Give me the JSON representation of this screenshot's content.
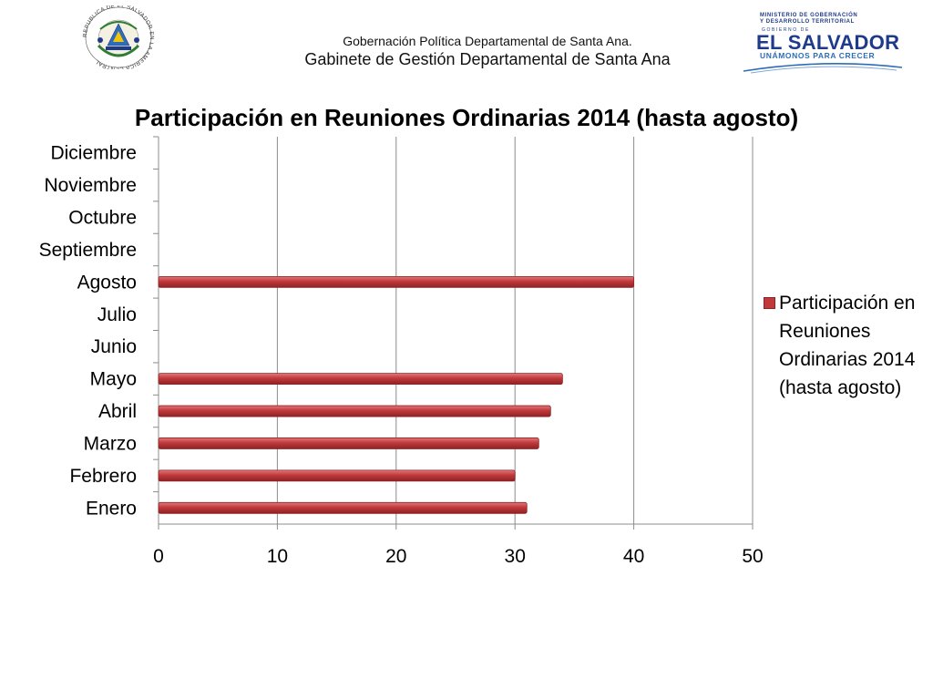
{
  "header": {
    "line1": "Gobernación Política Departamental de Santa Ana.",
    "line2": "Gabinete de Gestión Departamental de Santa Ana"
  },
  "seal": {
    "ring_text": "REPUBLICA DE EL SALVADOR EN LA AMERICA CENTRAL"
  },
  "logo": {
    "ministry_line1": "MINISTERIO DE GOBERNACIÓN",
    "ministry_line2": "Y DESARROLLO TERRITORIAL",
    "gobierno": "GOBIERNO DE",
    "country": "EL SALVADOR",
    "slogan": "UNÁMONOS PARA CRECER"
  },
  "colors": {
    "bar": "#c0393b",
    "bar_dark": "#8e2224",
    "bar_light": "#e27a7b",
    "grid": "#8c8c8c"
  },
  "chart_data": {
    "type": "bar",
    "orientation": "horizontal",
    "title": "Participación en Reuniones Ordinarias 2014 (hasta agosto)",
    "categories": [
      "Enero",
      "Febrero",
      "Marzo",
      "Abril",
      "Mayo ",
      "Junio",
      "Julio",
      "Agosto",
      "Septiembre",
      "Octubre",
      "Noviembre",
      "Diciembre"
    ],
    "series": [
      {
        "name": "Participación en Reuniones Ordinarias 2014 (hasta agosto)",
        "values": [
          31,
          30,
          32,
          33,
          34,
          null,
          null,
          40,
          null,
          null,
          null,
          null
        ]
      }
    ],
    "xlim": [
      0,
      50
    ],
    "xticks": [
      0,
      10,
      20,
      30,
      40,
      50
    ],
    "grid": true,
    "legend_position": "right"
  }
}
